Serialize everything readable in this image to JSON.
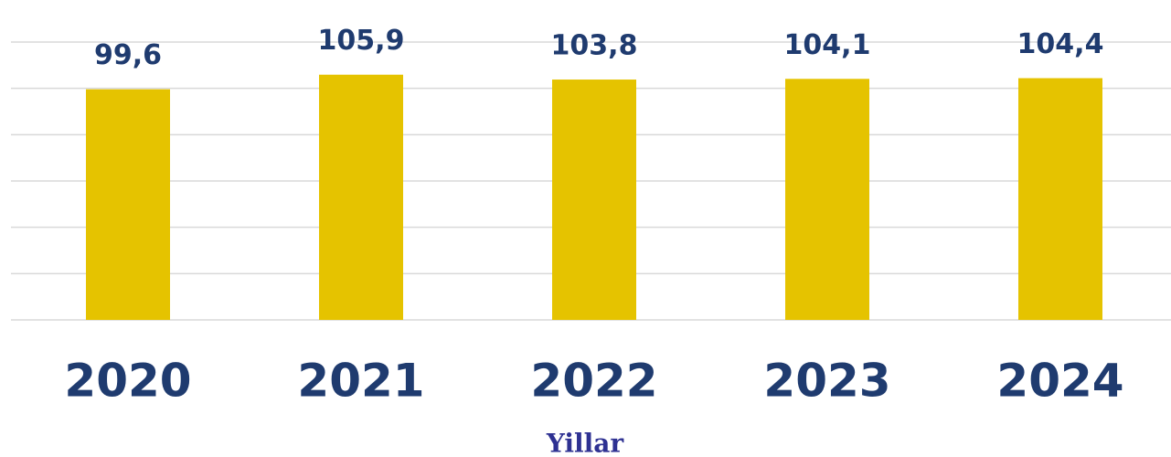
{
  "chart_data": {
    "type": "bar",
    "x_label": "Yillar",
    "categories": [
      "2020",
      "2021",
      "2022",
      "2023",
      "2024"
    ],
    "values": [
      99.6,
      105.9,
      103.8,
      104.1,
      104.4
    ],
    "value_labels": [
      "99,6",
      "105,9",
      "103,8",
      "104,1",
      "104,4"
    ],
    "color": "#e5c300",
    "ylim": [
      0,
      120
    ],
    "yticks": [
      0,
      20,
      40,
      60,
      80,
      100,
      120
    ],
    "grid": true
  }
}
